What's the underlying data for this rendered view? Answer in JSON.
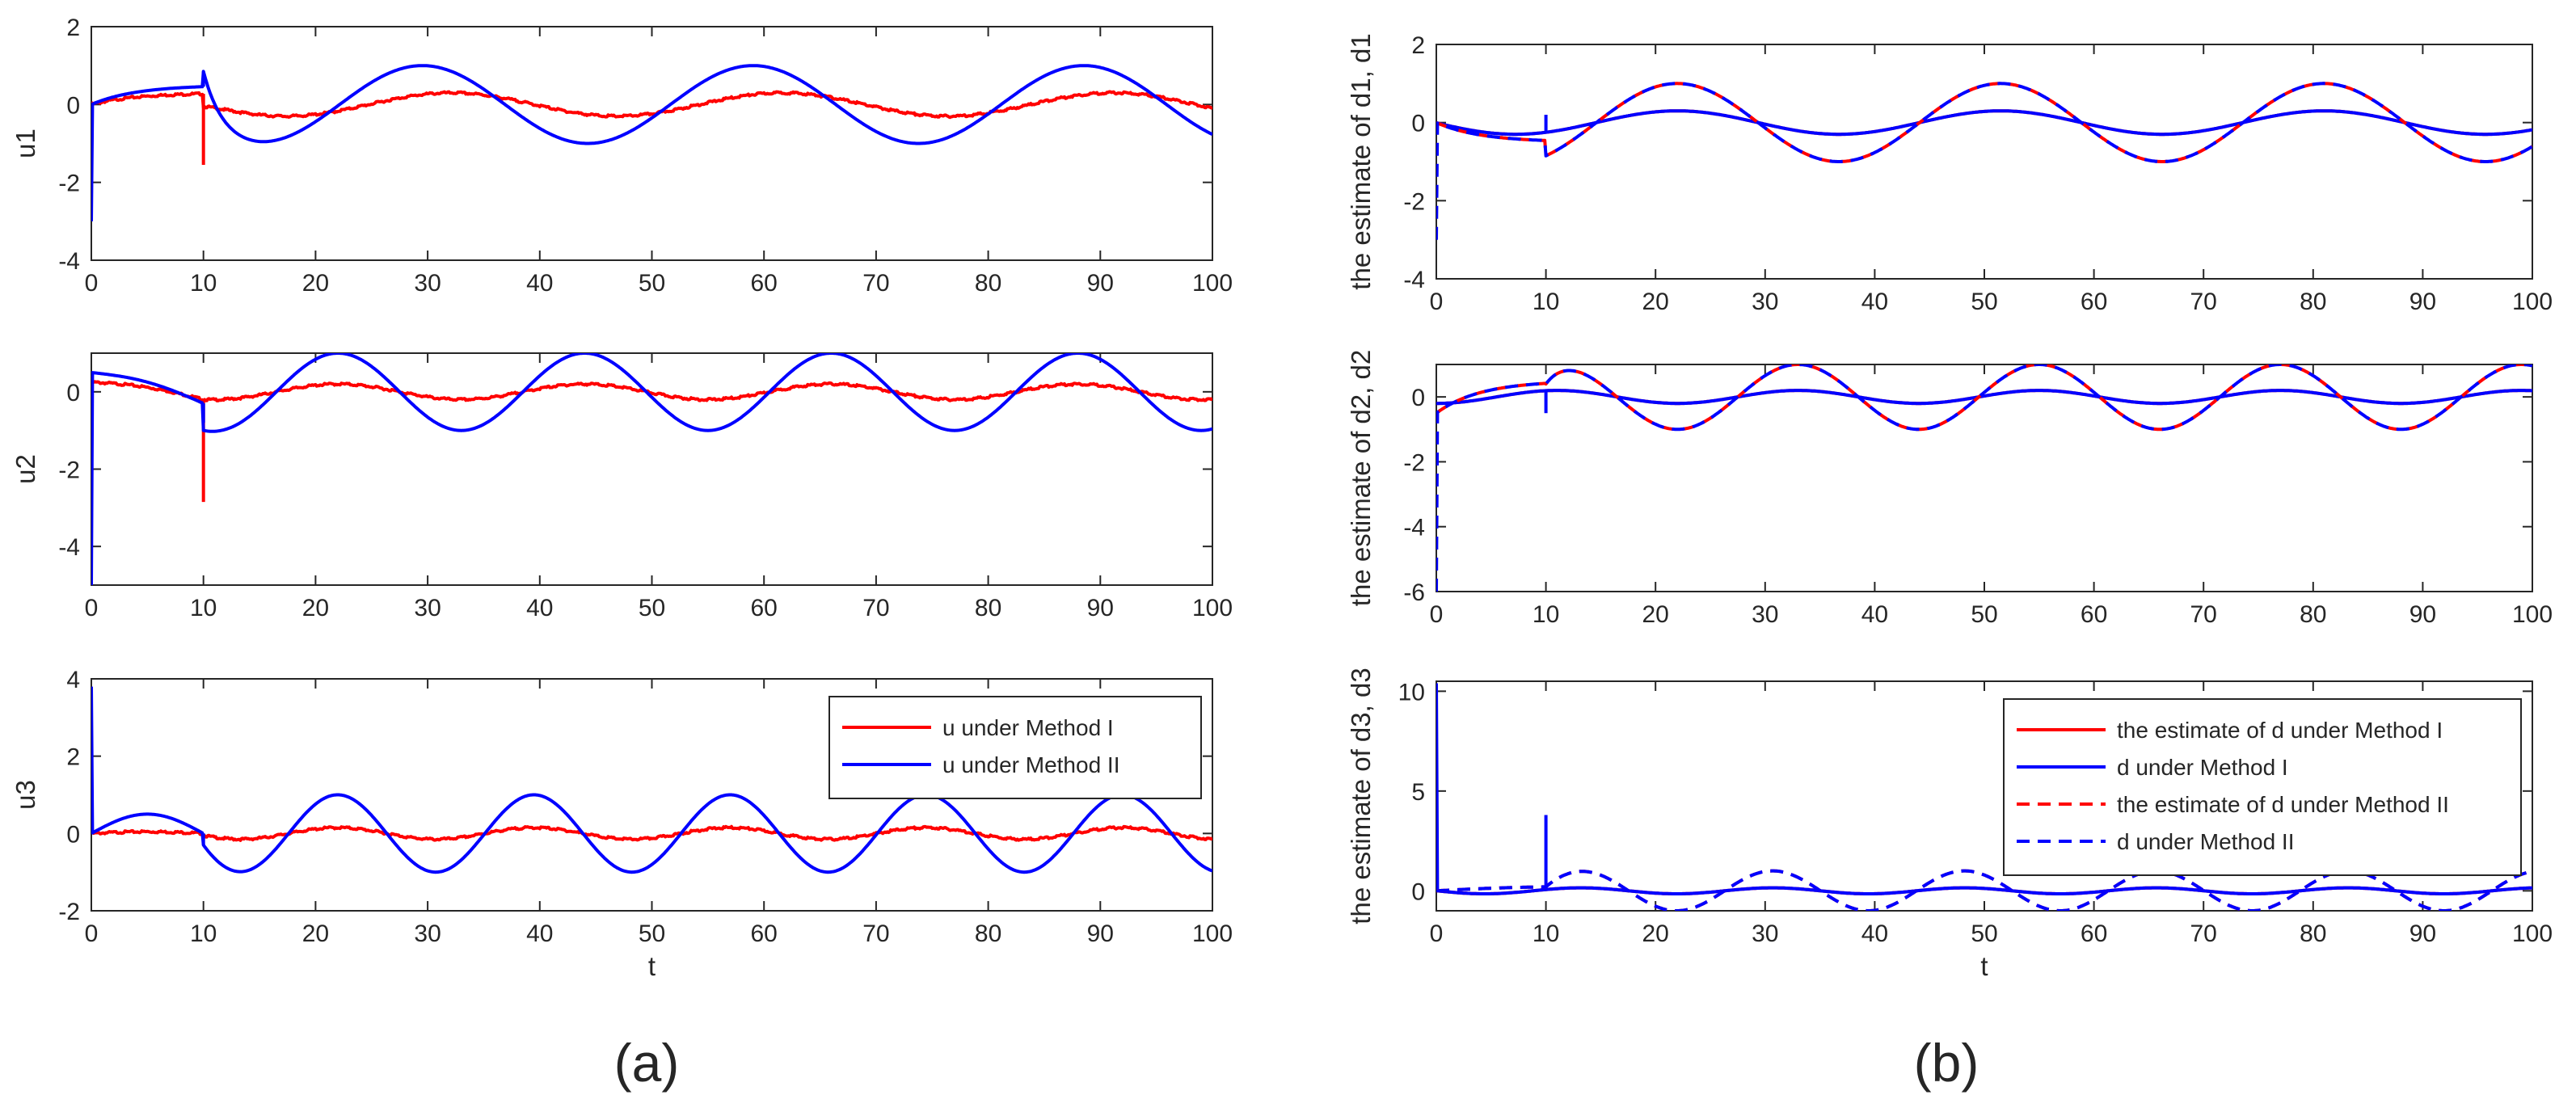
{
  "colors": {
    "red": "#ff0000",
    "blue": "#0000ff",
    "axis": "#262626"
  },
  "panel_labels": {
    "a": "(a)",
    "b": "(b)"
  },
  "chart_data": [
    {
      "id": "a1",
      "type": "line",
      "xlabel": "",
      "ylabel": "u1",
      "xlim": [
        0,
        100
      ],
      "ylim": [
        -4,
        2
      ],
      "xticks": [
        0,
        10,
        20,
        30,
        40,
        50,
        60,
        70,
        80,
        90,
        100
      ],
      "yticks": [
        -4,
        -2,
        0,
        2
      ],
      "series": [
        {
          "name": "u under Method I",
          "color": "#ff0000",
          "style": "solid",
          "pre": {
            "kind": "exp",
            "amp": 0.3,
            "tau": 4
          },
          "spike": -1.55,
          "post": {
            "amp": 0.3,
            "period": 29.5,
            "phase": 10,
            "sign": -1,
            "start": -0.05
          }
        },
        {
          "name": "u under Method II",
          "color": "#0000ff",
          "style": "solid",
          "pre": {
            "kind": "exp",
            "amp": 0.5,
            "tau": 4,
            "init": -3
          },
          "spike": 0.85,
          "post": {
            "amp": 1.0,
            "period": 29.5,
            "phase": 7.4,
            "sign": -1,
            "start": 0.85
          }
        }
      ]
    },
    {
      "id": "a2",
      "type": "line",
      "xlabel": "",
      "ylabel": "u2",
      "xlim": [
        0,
        100
      ],
      "ylim": [
        -5,
        1
      ],
      "xticks": [
        0,
        10,
        20,
        30,
        40,
        50,
        60,
        70,
        80,
        90,
        100
      ],
      "yticks": [
        -4,
        -2,
        0
      ],
      "series": [
        {
          "name": "u under Method I",
          "color": "#ff0000",
          "style": "solid",
          "pre": {
            "kind": "sin",
            "amp": 0.3,
            "from": 0.25,
            "to": -0.2
          },
          "spike": -2.85,
          "post": {
            "amp": 0.2,
            "period": 22,
            "phase": 16.5,
            "sign": 1,
            "start": -0.2
          }
        },
        {
          "name": "u under Method II",
          "color": "#0000ff",
          "style": "solid",
          "pre": {
            "kind": "sin",
            "amp": 0.5,
            "from": 0.5,
            "to": -0.3,
            "init": -5
          },
          "spike": -0.8,
          "post": {
            "amp": 1.0,
            "period": 22,
            "phase": 16.5,
            "sign": 1,
            "start": -1.0
          }
        }
      ]
    },
    {
      "id": "a3",
      "type": "line",
      "xlabel": "t",
      "ylabel": "u3",
      "xlim": [
        0,
        100
      ],
      "ylim": [
        -2,
        4
      ],
      "xticks": [
        0,
        10,
        20,
        30,
        40,
        50,
        60,
        70,
        80,
        90,
        100
      ],
      "yticks": [
        -2,
        0,
        2,
        4
      ],
      "legend": {
        "position": "top-right",
        "entries": [
          "u under Method I",
          "u under Method II"
        ]
      },
      "series": [
        {
          "name": "u under Method I",
          "color": "#ff0000",
          "style": "solid",
          "pre": {
            "kind": "sin",
            "amp": 0.15,
            "from": 0,
            "to": 0
          },
          "post": {
            "amp": 0.15,
            "period": 17.5,
            "phase": 17.6,
            "sign": 1,
            "start": -0.05
          }
        },
        {
          "name": "u under Method II",
          "color": "#0000ff",
          "style": "solid",
          "pre": {
            "kind": "bump",
            "amp": 0.5,
            "init": 3.8
          },
          "spike": -0.3,
          "post": {
            "amp": 1.0,
            "period": 17.5,
            "phase": 17.6,
            "sign": 1,
            "start": -0.3
          }
        }
      ]
    },
    {
      "id": "b1",
      "type": "line",
      "xlabel": "",
      "ylabel": "the estimate of d1, d1",
      "xlim": [
        0,
        100
      ],
      "ylim": [
        -4,
        2
      ],
      "xticks": [
        0,
        10,
        20,
        30,
        40,
        50,
        60,
        70,
        80,
        90,
        100
      ],
      "yticks": [
        -4,
        -2,
        0,
        2
      ],
      "series": [
        {
          "name": "the estimate of d under Method I",
          "color": "#ff0000",
          "style": "solid",
          "curve": {
            "amp": 0.3,
            "period": 29.5,
            "phase": 14.6,
            "sign": 1
          }
        },
        {
          "name": "d under Method I",
          "color": "#0000ff",
          "style": "solid",
          "curve": {
            "amp": 0.3,
            "period": 29.5,
            "phase": 14.6,
            "sign": 1
          },
          "spike": 0.2
        },
        {
          "name": "the estimate of d under Method II",
          "color": "#ff0000",
          "style": "dashed",
          "pre": {
            "kind": "exp",
            "amp": -0.5,
            "tau": 4
          },
          "post": {
            "amp": 1.0,
            "period": 29.5,
            "phase": 14.6,
            "sign": 1,
            "start": -0.85
          }
        },
        {
          "name": "d under Method II",
          "color": "#0000ff",
          "style": "dashed",
          "pre": {
            "kind": "exp",
            "amp": -0.5,
            "tau": 4,
            "init": -3
          },
          "post": {
            "amp": 1.0,
            "period": 29.5,
            "phase": 14.6,
            "sign": 1,
            "start": -0.85
          }
        }
      ]
    },
    {
      "id": "b2",
      "type": "line",
      "xlabel": "",
      "ylabel": "the estimate of d2, d2",
      "xlim": [
        0,
        100
      ],
      "ylim": [
        -6,
        1
      ],
      "xticks": [
        0,
        10,
        20,
        30,
        40,
        50,
        60,
        70,
        80,
        90,
        100
      ],
      "yticks": [
        -6,
        -4,
        -2,
        0
      ],
      "series": [
        {
          "name": "the estimate of d under Method I",
          "color": "#ff0000",
          "style": "solid",
          "curve": {
            "amp": 0.2,
            "period": 22,
            "phase": 5.5,
            "sign": 1
          }
        },
        {
          "name": "d under Method I",
          "color": "#0000ff",
          "style": "solid",
          "curve": {
            "amp": 0.2,
            "period": 22,
            "phase": 5.5,
            "sign": 1
          },
          "spike": -0.5
        },
        {
          "name": "the estimate of d under Method II",
          "color": "#ff0000",
          "style": "dashed",
          "pre": {
            "kind": "exp",
            "amp": 0.5,
            "tau": 4,
            "from": -0.5
          },
          "post": {
            "amp": 1.0,
            "period": 22,
            "phase": 5.5,
            "sign": 1,
            "start": 0.4
          }
        },
        {
          "name": "d under Method II",
          "color": "#0000ff",
          "style": "dashed",
          "pre": {
            "kind": "exp",
            "amp": 0.5,
            "tau": 4,
            "from": -0.5,
            "init": -6
          },
          "post": {
            "amp": 1.0,
            "period": 22,
            "phase": 5.5,
            "sign": 1,
            "start": 0.4
          }
        }
      ]
    },
    {
      "id": "b3",
      "type": "line",
      "xlabel": "t",
      "ylabel": "the estimate of d3, d3",
      "xlim": [
        0,
        100
      ],
      "ylim": [
        -1,
        10.5
      ],
      "xticks": [
        0,
        10,
        20,
        30,
        40,
        50,
        60,
        70,
        80,
        90,
        100
      ],
      "yticks": [
        0,
        5,
        10
      ],
      "legend": {
        "position": "top-right",
        "entries": [
          "the estimate of d under Method I",
          "d under Method I",
          "the estimate of d under Method II",
          "d under Method II"
        ]
      },
      "series": [
        {
          "name": "the estimate of d under Method I",
          "color": "#ff0000",
          "style": "solid",
          "curve": {
            "amp": 0.15,
            "period": 17.5,
            "phase": 8.8,
            "sign": 1
          }
        },
        {
          "name": "d under Method I",
          "color": "#0000ff",
          "style": "solid",
          "curve": {
            "amp": 0.15,
            "period": 17.5,
            "phase": 8.8,
            "sign": 1,
            "init": 10.4
          },
          "spike": 3.8
        },
        {
          "name": "the estimate of d under Method II",
          "color": "#ff0000",
          "style": "dashed",
          "pre": {
            "kind": "sin",
            "amp": 0.1,
            "from": 0,
            "to": 0.2
          },
          "post": {
            "amp": 1.0,
            "period": 17.5,
            "phase": 8.8,
            "sign": 1,
            "start": 0.2
          }
        },
        {
          "name": "d under Method II",
          "color": "#0000ff",
          "style": "dashed",
          "pre": {
            "kind": "sin",
            "amp": 0.1,
            "from": 0,
            "to": 0.2
          },
          "post": {
            "amp": 1.0,
            "period": 17.5,
            "phase": 8.8,
            "sign": 1,
            "start": 0.2
          }
        }
      ]
    }
  ]
}
